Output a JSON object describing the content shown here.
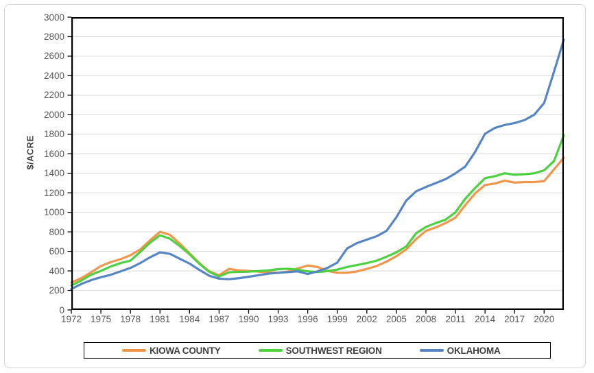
{
  "chart_data": {
    "type": "line",
    "title": "",
    "xlabel": "",
    "ylabel": "$/ACRE",
    "ylim": [
      0,
      3000
    ],
    "ytick_step": 200,
    "ytick_labels": [
      "0",
      "200",
      "400",
      "600",
      "800",
      "1000",
      "1200",
      "1400",
      "1600",
      "1800",
      "2000",
      "2200",
      "2400",
      "2600",
      "2800",
      "3000"
    ],
    "xtick_labels": [
      "1972",
      "1975",
      "1978",
      "1981",
      "1984",
      "1987",
      "1990",
      "1993",
      "1996",
      "1999",
      "2002",
      "2005",
      "2008",
      "2011",
      "2014",
      "2017",
      "2020"
    ],
    "grid": "horizontal",
    "legend_position": "bottom",
    "x": [
      1972,
      1973,
      1974,
      1975,
      1976,
      1977,
      1978,
      1979,
      1980,
      1981,
      1982,
      1983,
      1984,
      1985,
      1986,
      1987,
      1988,
      1989,
      1990,
      1991,
      1992,
      1993,
      1994,
      1995,
      1996,
      1997,
      1998,
      1999,
      2000,
      2001,
      2002,
      2003,
      2004,
      2005,
      2006,
      2007,
      2008,
      2009,
      2010,
      2011,
      2012,
      2013,
      2014,
      2015,
      2016,
      2017,
      2018,
      2019,
      2020,
      2021,
      2022
    ],
    "series": [
      {
        "name": "KIOWA COUNTY",
        "color": "#F0964B",
        "values": [
          280,
          325,
          385,
          450,
          490,
          520,
          560,
          620,
          715,
          800,
          770,
          680,
          580,
          480,
          395,
          355,
          420,
          405,
          400,
          392,
          385,
          380,
          395,
          425,
          455,
          440,
          400,
          380,
          380,
          395,
          420,
          450,
          495,
          550,
          620,
          725,
          810,
          845,
          890,
          945,
          1075,
          1195,
          1280,
          1295,
          1325,
          1305,
          1310,
          1310,
          1320,
          1440,
          1560
        ]
      },
      {
        "name": "SOUTHWEST REGION",
        "color": "#4CD13F",
        "values": [
          250,
          300,
          360,
          400,
          445,
          480,
          505,
          595,
          690,
          765,
          730,
          655,
          570,
          472,
          390,
          342,
          385,
          390,
          392,
          398,
          405,
          418,
          422,
          412,
          395,
          388,
          398,
          413,
          440,
          460,
          480,
          505,
          545,
          590,
          650,
          785,
          850,
          890,
          925,
          1000,
          1140,
          1250,
          1350,
          1370,
          1400,
          1385,
          1390,
          1400,
          1430,
          1525,
          1790
        ]
      },
      {
        "name": "OKLAHOMA",
        "color": "#5585C2",
        "values": [
          215,
          265,
          305,
          335,
          360,
          395,
          430,
          480,
          540,
          590,
          575,
          525,
          475,
          410,
          350,
          320,
          315,
          325,
          340,
          355,
          372,
          380,
          388,
          395,
          368,
          395,
          430,
          485,
          630,
          685,
          720,
          755,
          810,
          950,
          1120,
          1215,
          1260,
          1300,
          1340,
          1400,
          1470,
          1620,
          1805,
          1865,
          1895,
          1915,
          1945,
          2000,
          2120,
          2440,
          2770
        ]
      }
    ],
    "style": {
      "grid_color": "#D9D9D9",
      "axis_color": "#000000",
      "tick_label_color": "#595959",
      "axis_title_color": "#404040",
      "plot_border": "black box",
      "line_width": 3.2
    }
  }
}
